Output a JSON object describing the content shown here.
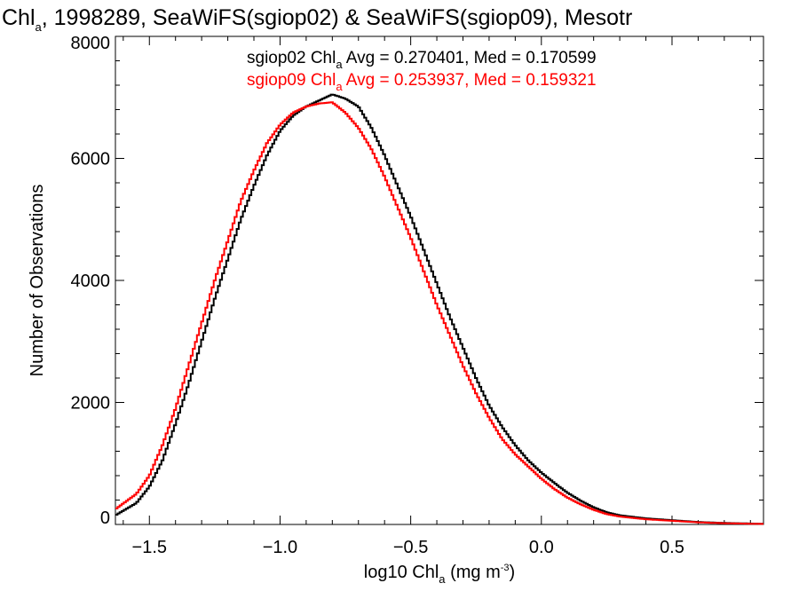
{
  "chart_data": {
    "type": "line",
    "title": {
      "prefix": "Chl",
      "sub": "a",
      "rest": ", 1998289, SeaWiFS(sgiop02) & SeaWiFS(sgiop09), Mesotr"
    },
    "xlabel": {
      "prefix": "log10 Chl",
      "sub": "a",
      "mid": " (mg m",
      "sup": "-3",
      "end": ")"
    },
    "ylabel": "Number of Observations",
    "xlim": [
      -1.63,
      0.85
    ],
    "ylim": [
      0,
      8000
    ],
    "x_ticks": [
      -1.5,
      -1.0,
      -0.5,
      0.0,
      0.5
    ],
    "x_tick_labels": [
      "−1.5",
      "−1.0",
      "−0.5",
      "0.0",
      "0.5"
    ],
    "y_ticks": [
      0,
      2000,
      4000,
      6000,
      8000
    ],
    "y_tick_labels": [
      "0",
      "2000",
      "4000",
      "6000",
      "8000"
    ],
    "grid": false,
    "legend_position": "top-right",
    "series": [
      {
        "name": "sgiop02",
        "color": "#000000",
        "legend": {
          "prefix": "sgiop02 Chl",
          "sub": "a",
          "rest": " Avg = 0.270401, Med = 0.170599"
        },
        "points": [
          [
            -1.63,
            150
          ],
          [
            -1.55,
            350
          ],
          [
            -1.5,
            620
          ],
          [
            -1.45,
            1050
          ],
          [
            -1.4,
            1650
          ],
          [
            -1.35,
            2300
          ],
          [
            -1.3,
            3000
          ],
          [
            -1.25,
            3700
          ],
          [
            -1.2,
            4350
          ],
          [
            -1.15,
            5000
          ],
          [
            -1.1,
            5550
          ],
          [
            -1.05,
            6050
          ],
          [
            -1.0,
            6450
          ],
          [
            -0.95,
            6700
          ],
          [
            -0.9,
            6850
          ],
          [
            -0.85,
            6950
          ],
          [
            -0.8,
            7050
          ],
          [
            -0.75,
            6980
          ],
          [
            -0.7,
            6850
          ],
          [
            -0.65,
            6500
          ],
          [
            -0.6,
            6050
          ],
          [
            -0.55,
            5550
          ],
          [
            -0.5,
            5050
          ],
          [
            -0.45,
            4500
          ],
          [
            -0.4,
            3950
          ],
          [
            -0.35,
            3400
          ],
          [
            -0.3,
            2900
          ],
          [
            -0.25,
            2400
          ],
          [
            -0.2,
            1950
          ],
          [
            -0.15,
            1600
          ],
          [
            -0.1,
            1300
          ],
          [
            -0.05,
            1050
          ],
          [
            0.0,
            850
          ],
          [
            0.05,
            680
          ],
          [
            0.1,
            520
          ],
          [
            0.15,
            390
          ],
          [
            0.2,
            280
          ],
          [
            0.25,
            200
          ],
          [
            0.3,
            150
          ],
          [
            0.4,
            100
          ],
          [
            0.5,
            70
          ],
          [
            0.6,
            40
          ],
          [
            0.7,
            25
          ],
          [
            0.85,
            10
          ]
        ]
      },
      {
        "name": "sgiop09",
        "color": "#ff0000",
        "legend": {
          "prefix": "sgiop09 Chl",
          "sub": "a",
          "rest": " Avg = 0.253937, Med = 0.159321"
        },
        "points": [
          [
            -1.63,
            250
          ],
          [
            -1.55,
            500
          ],
          [
            -1.5,
            800
          ],
          [
            -1.45,
            1300
          ],
          [
            -1.4,
            1900
          ],
          [
            -1.35,
            2600
          ],
          [
            -1.3,
            3300
          ],
          [
            -1.25,
            4000
          ],
          [
            -1.2,
            4650
          ],
          [
            -1.15,
            5300
          ],
          [
            -1.1,
            5800
          ],
          [
            -1.05,
            6250
          ],
          [
            -1.0,
            6550
          ],
          [
            -0.95,
            6750
          ],
          [
            -0.9,
            6850
          ],
          [
            -0.85,
            6900
          ],
          [
            -0.8,
            6920
          ],
          [
            -0.75,
            6750
          ],
          [
            -0.7,
            6500
          ],
          [
            -0.65,
            6150
          ],
          [
            -0.6,
            5700
          ],
          [
            -0.55,
            5200
          ],
          [
            -0.5,
            4700
          ],
          [
            -0.45,
            4150
          ],
          [
            -0.4,
            3600
          ],
          [
            -0.35,
            3100
          ],
          [
            -0.3,
            2600
          ],
          [
            -0.25,
            2150
          ],
          [
            -0.2,
            1750
          ],
          [
            -0.15,
            1400
          ],
          [
            -0.1,
            1150
          ],
          [
            -0.05,
            950
          ],
          [
            0.0,
            750
          ],
          [
            0.05,
            580
          ],
          [
            0.1,
            440
          ],
          [
            0.15,
            330
          ],
          [
            0.2,
            240
          ],
          [
            0.25,
            170
          ],
          [
            0.3,
            130
          ],
          [
            0.4,
            85
          ],
          [
            0.5,
            60
          ],
          [
            0.6,
            35
          ],
          [
            0.7,
            20
          ],
          [
            0.85,
            8
          ]
        ]
      }
    ]
  }
}
